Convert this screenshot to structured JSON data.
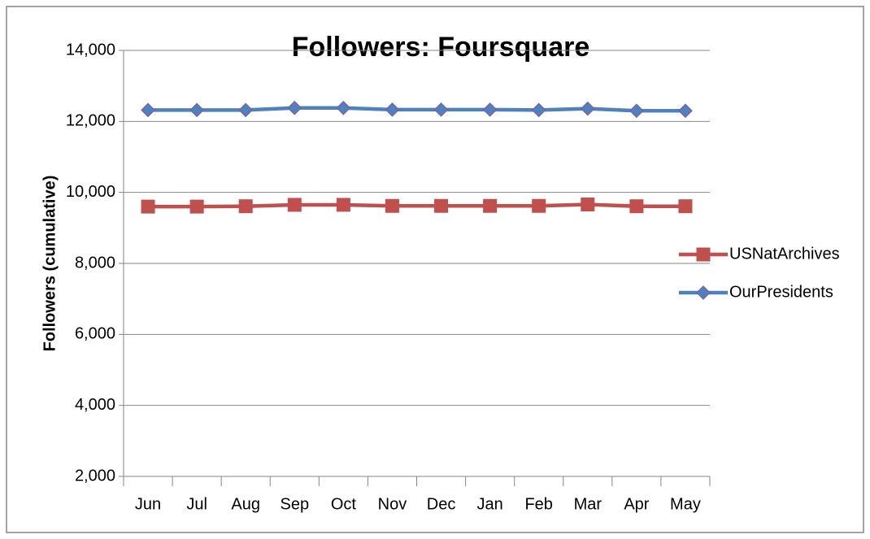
{
  "chart_data": {
    "type": "line",
    "title": "Followers: Foursquare",
    "ylabel": "Followers (cumulative)",
    "categories": [
      "Jun",
      "Jul",
      "Aug",
      "Sep",
      "Oct",
      "Nov",
      "Dec",
      "Jan",
      "Feb",
      "Mar",
      "Apr",
      "May"
    ],
    "series": [
      {
        "name": "USNatArchives",
        "color": "#c0504d",
        "marker": "square",
        "values": [
          9600,
          9600,
          9610,
          9650,
          9650,
          9620,
          9620,
          9620,
          9620,
          9660,
          9610,
          9610
        ]
      },
      {
        "name": "OurPresidents",
        "color": "#4f81bd",
        "marker": "diamond",
        "values": [
          12320,
          12320,
          12320,
          12380,
          12380,
          12330,
          12330,
          12330,
          12320,
          12360,
          12300,
          12300
        ]
      }
    ],
    "ylim": [
      2000,
      14000
    ],
    "yticks": [
      {
        "value": 2000,
        "label": "2,000"
      },
      {
        "value": 4000,
        "label": "4,000"
      },
      {
        "value": 6000,
        "label": "6,000"
      },
      {
        "value": 8000,
        "label": "8,000"
      },
      {
        "value": 10000,
        "label": "10,000"
      },
      {
        "value": 12000,
        "label": "12,000"
      },
      {
        "value": 14000,
        "label": "14,000"
      }
    ],
    "grid": true,
    "legend": "right"
  }
}
